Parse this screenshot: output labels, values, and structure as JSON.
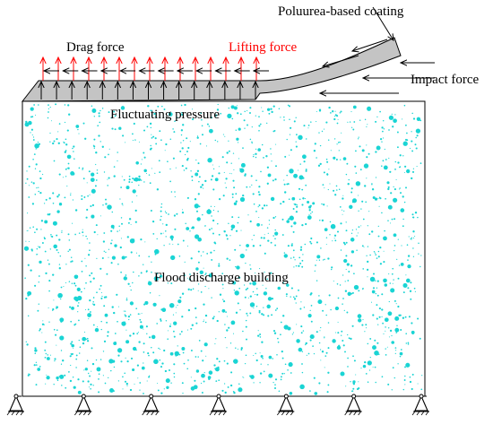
{
  "labels": {
    "coating": "Poluurea-based coating",
    "drag": "Drag force",
    "lifting": "Lifting force",
    "impact": "Impact force",
    "fluctuating": "Fluctuating pressure",
    "building": "Flood discharge building"
  },
  "colors": {
    "block_fill": "#ffffff",
    "speckle": "#1ad4d4",
    "coating_fill": "#c4c4c4",
    "lifting_arrow": "#ff0000",
    "lifting_text": "#ff0000",
    "line": "#000000"
  },
  "counts": {
    "lifting_arrows": 15,
    "pressure_arrows": 15,
    "drag_arrows": 12,
    "supports": 7
  }
}
